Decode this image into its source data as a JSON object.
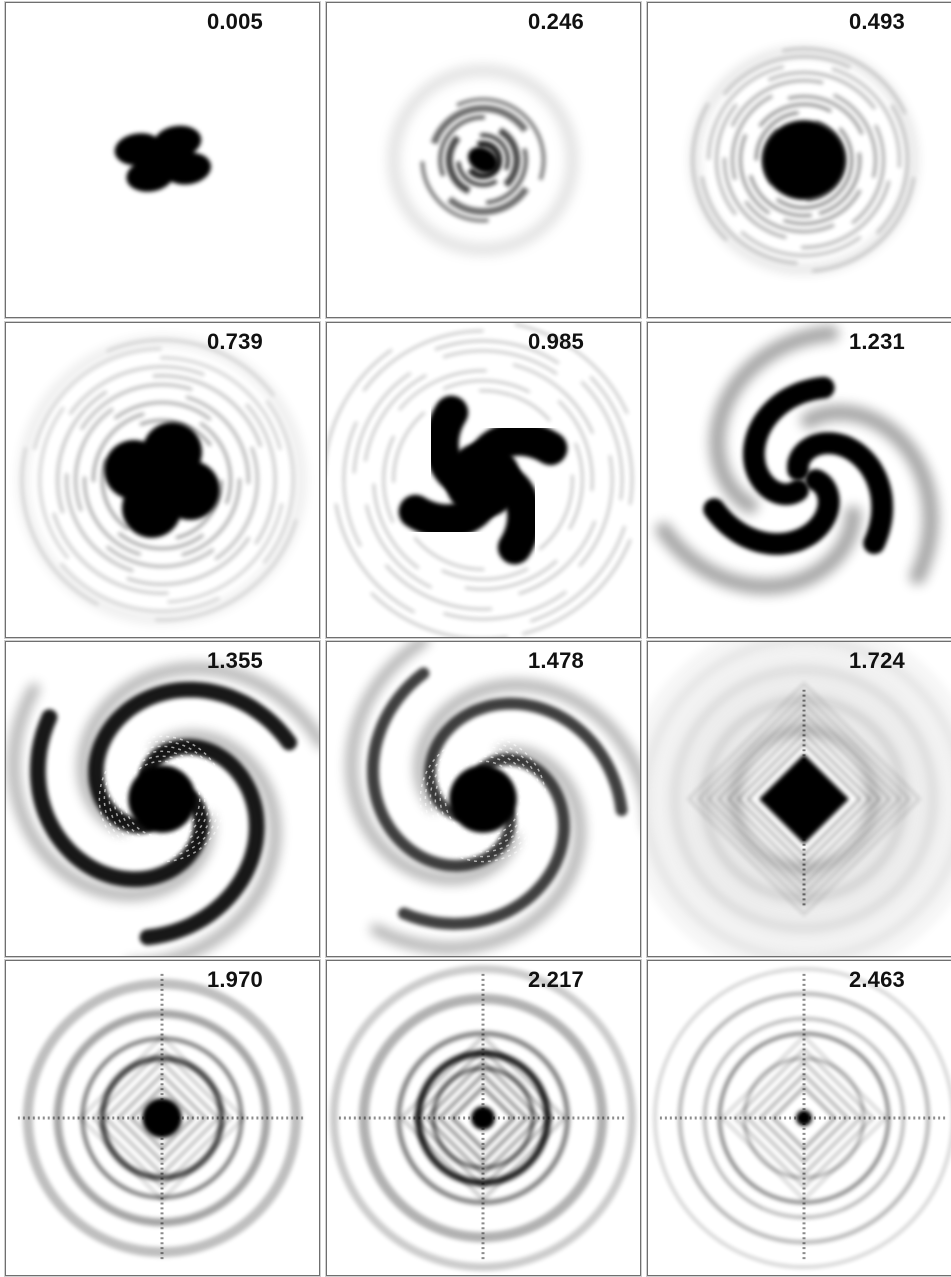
{
  "figure": {
    "panels": [
      {
        "time_label": "0.005",
        "stage": 0
      },
      {
        "time_label": "0.246",
        "stage": 1
      },
      {
        "time_label": "0.493",
        "stage": 2
      },
      {
        "time_label": "0.739",
        "stage": 3
      },
      {
        "time_label": "0.985",
        "stage": 4
      },
      {
        "time_label": "1.231",
        "stage": 5
      },
      {
        "time_label": "1.355",
        "stage": 6
      },
      {
        "time_label": "1.478",
        "stage": 7
      },
      {
        "time_label": "1.724",
        "stage": 8
      },
      {
        "time_label": "1.970",
        "stage": 9
      },
      {
        "time_label": "2.217",
        "stage": 10
      },
      {
        "time_label": "2.463",
        "stage": 11
      }
    ],
    "colors": {
      "background": "#ffffff",
      "ink": "#000000",
      "frame": "#6f6f6f"
    }
  }
}
